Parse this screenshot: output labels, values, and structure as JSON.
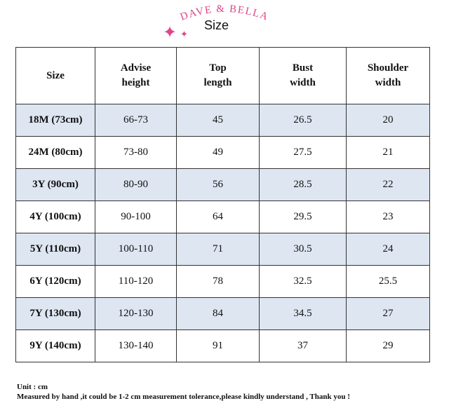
{
  "header": {
    "brand": "DAVE & BELLA",
    "title": "Size",
    "sparkle_big_icon": "✦",
    "sparkle_small_icon": "✦",
    "accent_color": "#e0448a"
  },
  "table": {
    "columns": [
      {
        "line1": "Size",
        "line2": ""
      },
      {
        "line1": "Advise",
        "line2": "height"
      },
      {
        "line1": "Top",
        "line2": "length"
      },
      {
        "line1": "Bust",
        "line2": "width"
      },
      {
        "line1": "Shoulder",
        "line2": "width"
      }
    ],
    "rows": [
      {
        "size": "18M (73cm)",
        "height": "66-73",
        "top_length": "45",
        "bust_width": "26.5",
        "shoulder_width": "20"
      },
      {
        "size": "24M (80cm)",
        "height": "73-80",
        "top_length": "49",
        "bust_width": "27.5",
        "shoulder_width": "21"
      },
      {
        "size": "3Y (90cm)",
        "height": "80-90",
        "top_length": "56",
        "bust_width": "28.5",
        "shoulder_width": "22"
      },
      {
        "size": "4Y (100cm)",
        "height": "90-100",
        "top_length": "64",
        "bust_width": "29.5",
        "shoulder_width": "23"
      },
      {
        "size": "5Y (110cm)",
        "height": "100-110",
        "top_length": "71",
        "bust_width": "30.5",
        "shoulder_width": "24"
      },
      {
        "size": "6Y (120cm)",
        "height": "110-120",
        "top_length": "78",
        "bust_width": "32.5",
        "shoulder_width": "25.5"
      },
      {
        "size": "7Y (130cm)",
        "height": "120-130",
        "top_length": "84",
        "bust_width": "34.5",
        "shoulder_width": "27"
      },
      {
        "size": "9Y (140cm)",
        "height": "130-140",
        "top_length": "91",
        "bust_width": "37",
        "shoulder_width": "29"
      }
    ],
    "shaded_color": "#dde6f1"
  },
  "footer": {
    "unit": "Unit : cm",
    "note": "Measured by hand ,it could be 1-2 cm measurement tolerance,please kindly understand , Thank you !"
  }
}
